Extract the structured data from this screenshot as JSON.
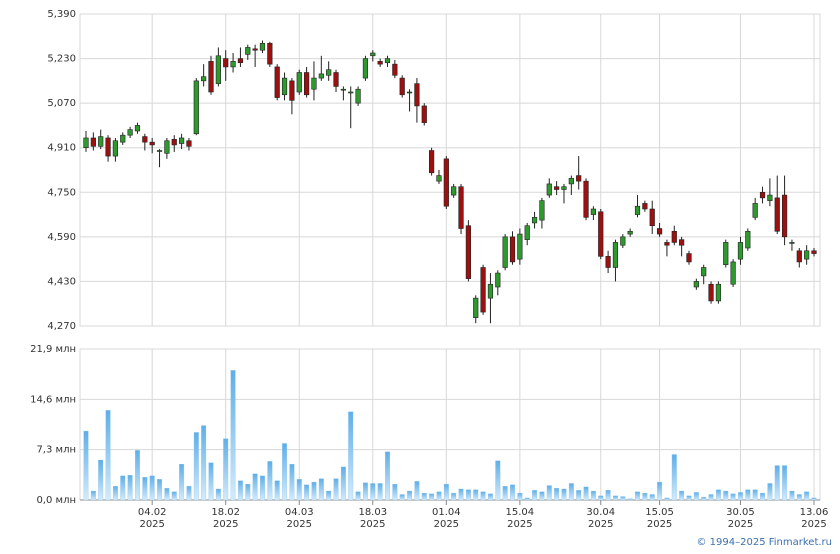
{
  "chart_data": [
    {
      "type": "candlestick",
      "x": [
        "2025-01-22",
        "2025-01-23",
        "2025-01-24",
        "2025-01-27",
        "2025-01-28",
        "2025-01-29",
        "2025-01-30",
        "2025-01-31",
        "2025-02-03",
        "2025-02-04",
        "2025-02-05",
        "2025-02-06",
        "2025-02-07",
        "2025-02-10",
        "2025-02-11",
        "2025-02-12",
        "2025-02-13",
        "2025-02-14",
        "2025-02-17",
        "2025-02-18",
        "2025-02-19",
        "2025-02-20",
        "2025-02-21",
        "2025-02-24",
        "2025-02-25",
        "2025-02-26",
        "2025-02-27",
        "2025-02-28",
        "2025-03-03",
        "2025-03-04",
        "2025-03-05",
        "2025-03-06",
        "2025-03-07",
        "2025-03-10",
        "2025-03-11",
        "2025-03-12",
        "2025-03-13",
        "2025-03-14",
        "2025-03-17",
        "2025-03-18",
        "2025-03-19",
        "2025-03-20",
        "2025-03-21",
        "2025-03-24",
        "2025-03-25",
        "2025-03-26",
        "2025-03-27",
        "2025-03-28",
        "2025-03-31",
        "2025-04-01",
        "2025-04-02",
        "2025-04-03",
        "2025-04-04",
        "2025-04-07",
        "2025-04-08",
        "2025-04-09",
        "2025-04-10",
        "2025-04-11",
        "2025-04-14",
        "2025-04-15",
        "2025-04-16",
        "2025-04-17",
        "2025-04-18",
        "2025-04-21",
        "2025-04-22",
        "2025-04-23",
        "2025-04-24",
        "2025-04-25",
        "2025-04-28",
        "2025-04-29",
        "2025-04-30",
        "2025-05-05",
        "2025-05-06",
        "2025-05-07",
        "2025-05-08",
        "2025-05-12",
        "2025-05-13",
        "2025-05-14",
        "2025-05-15",
        "2025-05-16",
        "2025-05-19",
        "2025-05-20",
        "2025-05-21",
        "2025-05-22",
        "2025-05-23",
        "2025-05-26",
        "2025-05-27",
        "2025-05-28",
        "2025-05-29",
        "2025-05-30",
        "2025-06-02",
        "2025-06-03",
        "2025-06-04",
        "2025-06-05",
        "2025-06-06",
        "2025-06-09",
        "2025-06-10",
        "2025-06-11",
        "2025-06-12",
        "2025-06-13"
      ],
      "open": [
        4910,
        4945,
        4915,
        4945,
        4880,
        4930,
        4955,
        4970,
        4950,
        4930,
        4900,
        4890,
        4940,
        4925,
        4935,
        4960,
        5150,
        5220,
        5140,
        5230,
        5200,
        5230,
        5245,
        5265,
        5260,
        5285,
        5200,
        5100,
        5150,
        5110,
        5180,
        5120,
        5160,
        5170,
        5180,
        5120,
        5110,
        5070,
        5160,
        5240,
        5220,
        5215,
        5210,
        5160,
        5110,
        5140,
        5060,
        4900,
        4790,
        4870,
        4740,
        4770,
        4630,
        4300,
        4480,
        4370,
        4410,
        4480,
        4590,
        4510,
        4580,
        4640,
        4650,
        4740,
        4770,
        4760,
        4780,
        4810,
        4790,
        4670,
        4680,
        4520,
        4480,
        4560,
        4600,
        4670,
        4710,
        4690,
        4620,
        4570,
        4610,
        4580,
        4530,
        4410,
        4450,
        4420,
        4360,
        4490,
        4420,
        4510,
        4550,
        4660,
        4750,
        4720,
        4730,
        4740,
        4570,
        4540,
        4510,
        4540
      ],
      "high": [
        4970,
        4965,
        4975,
        4955,
        4945,
        4965,
        4985,
        5000,
        4960,
        4945,
        4905,
        4945,
        4955,
        4960,
        4945,
        5160,
        5210,
        5240,
        5270,
        5260,
        5250,
        5270,
        5280,
        5280,
        5295,
        5290,
        5210,
        5180,
        5160,
        5190,
        5200,
        5220,
        5240,
        5220,
        5190,
        5130,
        5130,
        5130,
        5240,
        5260,
        5230,
        5240,
        5225,
        5170,
        5120,
        5160,
        5070,
        4910,
        4830,
        4880,
        4780,
        4780,
        4650,
        4380,
        4490,
        4460,
        4470,
        4600,
        4610,
        4620,
        4640,
        4680,
        4730,
        4800,
        4790,
        4780,
        4810,
        4880,
        4800,
        4700,
        4690,
        4540,
        4580,
        4600,
        4620,
        4740,
        4720,
        4720,
        4640,
        4580,
        4630,
        4590,
        4540,
        4440,
        4490,
        4430,
        4430,
        4580,
        4510,
        4590,
        4620,
        4730,
        4770,
        4800,
        4810,
        4810,
        4580,
        4550,
        4560,
        4550
      ],
      "low": [
        4895,
        4900,
        4905,
        4860,
        4860,
        4920,
        4945,
        4960,
        4900,
        4890,
        4840,
        4870,
        4895,
        4905,
        4900,
        4955,
        5130,
        5100,
        5130,
        5150,
        5180,
        5200,
        5225,
        5200,
        5250,
        5200,
        5080,
        5080,
        5030,
        5100,
        5090,
        5080,
        5150,
        5150,
        5110,
        5080,
        4980,
        5060,
        5150,
        5220,
        5200,
        5200,
        5160,
        5090,
        5040,
        5000,
        4990,
        4810,
        4780,
        4690,
        4730,
        4600,
        4430,
        4280,
        4310,
        4280,
        4380,
        4470,
        4490,
        4490,
        4560,
        4620,
        4620,
        4730,
        4740,
        4710,
        4740,
        4760,
        4650,
        4650,
        4510,
        4460,
        4430,
        4550,
        4590,
        4660,
        4680,
        4600,
        4590,
        4520,
        4560,
        4520,
        4490,
        4400,
        4420,
        4350,
        4350,
        4480,
        4410,
        4490,
        4540,
        4650,
        4710,
        4700,
        4600,
        4560,
        4540,
        4480,
        4490,
        4520
      ],
      "close": [
        4945,
        4915,
        4950,
        4880,
        4935,
        4955,
        4975,
        4990,
        4930,
        4920,
        4900,
        4935,
        4920,
        4945,
        4915,
        5150,
        5165,
        5110,
        5240,
        5200,
        5220,
        5215,
        5270,
        5260,
        5285,
        5210,
        5090,
        5160,
        5080,
        5180,
        5100,
        5160,
        5175,
        5190,
        5130,
        5120,
        5110,
        5120,
        5230,
        5250,
        5210,
        5230,
        5170,
        5100,
        5110,
        5060,
        5000,
        4820,
        4810,
        4700,
        4770,
        4620,
        4440,
        4370,
        4320,
        4420,
        4460,
        4590,
        4500,
        4600,
        4630,
        4660,
        4720,
        4780,
        4760,
        4770,
        4800,
        4790,
        4660,
        4690,
        4520,
        4480,
        4570,
        4590,
        4610,
        4700,
        4690,
        4630,
        4600,
        4560,
        4570,
        4560,
        4500,
        4430,
        4480,
        4360,
        4420,
        4570,
        4500,
        4570,
        4610,
        4710,
        4730,
        4740,
        4610,
        4590,
        4570,
        4500,
        4540,
        4530
      ],
      "up_color": "#2e9a2e",
      "down_color": "#9c1010",
      "ylim": [
        4270,
        5390
      ],
      "yticks": [
        {
          "value": 4270,
          "label": "4,270"
        },
        {
          "value": 4430,
          "label": "4,430"
        },
        {
          "value": 4590,
          "label": "4,590"
        },
        {
          "value": 4750,
          "label": "4,750"
        },
        {
          "value": 4910,
          "label": "4,910"
        },
        {
          "value": 5070,
          "label": "5,070"
        },
        {
          "value": 5230,
          "label": "5,230"
        },
        {
          "value": 5390,
          "label": "5,390"
        }
      ],
      "grid": true
    },
    {
      "type": "bar",
      "values": [
        10.0,
        1.3,
        5.8,
        13.0,
        2.0,
        3.5,
        3.6,
        7.2,
        3.3,
        3.5,
        3.0,
        1.7,
        1.2,
        5.2,
        2.0,
        9.8,
        10.8,
        5.4,
        1.6,
        8.9,
        18.8,
        2.8,
        2.3,
        3.8,
        3.5,
        5.6,
        2.8,
        8.2,
        5.2,
        3.0,
        2.2,
        2.6,
        3.1,
        1.3,
        3.1,
        4.8,
        12.8,
        1.2,
        2.5,
        2.4,
        2.4,
        7.0,
        2.3,
        0.8,
        1.3,
        2.7,
        1.0,
        0.9,
        1.2,
        2.3,
        1.0,
        1.6,
        1.5,
        1.5,
        1.2,
        0.9,
        5.7,
        2.0,
        2.2,
        1.0,
        0.3,
        1.4,
        1.2,
        2.1,
        1.7,
        1.6,
        2.4,
        1.4,
        1.9,
        1.3,
        0.6,
        1.4,
        0.6,
        0.5,
        0.2,
        1.2,
        1.0,
        0.8,
        2.6,
        0.3,
        6.6,
        1.3,
        0.6,
        1.1,
        0.4,
        0.8,
        1.5,
        1.3,
        0.9,
        1.1,
        1.5,
        1.5,
        1.0,
        2.4,
        5.0,
        5.0,
        1.3,
        0.8,
        1.2,
        0.3
      ],
      "color": "#8cc6ef",
      "ylim": [
        0,
        21.9
      ],
      "yticks": [
        {
          "value": 0,
          "label": "0,0 млн"
        },
        {
          "value": 7.3,
          "label": "7,3 млн"
        },
        {
          "value": 14.6,
          "label": "14,6 млн"
        },
        {
          "value": 21.9,
          "label": "21,9 млн"
        }
      ],
      "xticks": [
        {
          "value": "2025-02-04",
          "label": "04.02 2025"
        },
        {
          "value": "2025-02-18",
          "label": "18.02 2025"
        },
        {
          "value": "2025-03-04",
          "label": "04.03 2025"
        },
        {
          "value": "2025-03-18",
          "label": "18.03 2025"
        },
        {
          "value": "2025-04-01",
          "label": "01.04 2025"
        },
        {
          "value": "2025-04-15",
          "label": "15.04 2025"
        },
        {
          "value": "2025-04-30",
          "label": "30.04 2025"
        },
        {
          "value": "2025-05-15",
          "label": "15.05 2025"
        },
        {
          "value": "2025-05-30",
          "label": "30.05 2025"
        },
        {
          "value": "2025-06-13",
          "label": "13.06 2025"
        }
      ],
      "grid": true
    }
  ],
  "footer": "© 1994–2025 Finmarket.ru"
}
